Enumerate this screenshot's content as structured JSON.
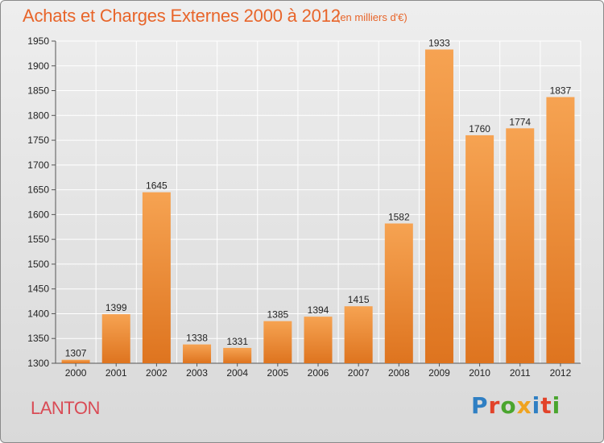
{
  "chart_data": {
    "type": "bar",
    "title": "Achats et Charges Externes 2000 à 2012",
    "subtitle": "(en milliers d'€)",
    "xlabel": "",
    "ylabel": "",
    "categories": [
      "2000",
      "2001",
      "2002",
      "2003",
      "2004",
      "2005",
      "2006",
      "2007",
      "2008",
      "2009",
      "2010",
      "2011",
      "2012"
    ],
    "values": [
      1307,
      1399,
      1645,
      1338,
      1331,
      1385,
      1394,
      1415,
      1582,
      1933,
      1760,
      1774,
      1837
    ],
    "data_labels": [
      "1307",
      "1399",
      "1645",
      "1338",
      "1331",
      "1385",
      "1394",
      "1415",
      "1582",
      "1933",
      "1760",
      "1774",
      "1837"
    ],
    "ylim": [
      1300,
      1950
    ],
    "yticks": [
      1300,
      1350,
      1400,
      1450,
      1500,
      1550,
      1600,
      1650,
      1700,
      1750,
      1800,
      1850,
      1900,
      1950
    ],
    "grid": true,
    "legend": "none",
    "colors": {
      "bar_light": "#f6a352",
      "bar_dark": "#de741f",
      "grid": "#ffffff",
      "axis": "#555555"
    }
  },
  "labels": {
    "commune": "LANTON",
    "logo": [
      "P",
      "r",
      "o",
      "x",
      "i",
      "t",
      "i"
    ]
  }
}
